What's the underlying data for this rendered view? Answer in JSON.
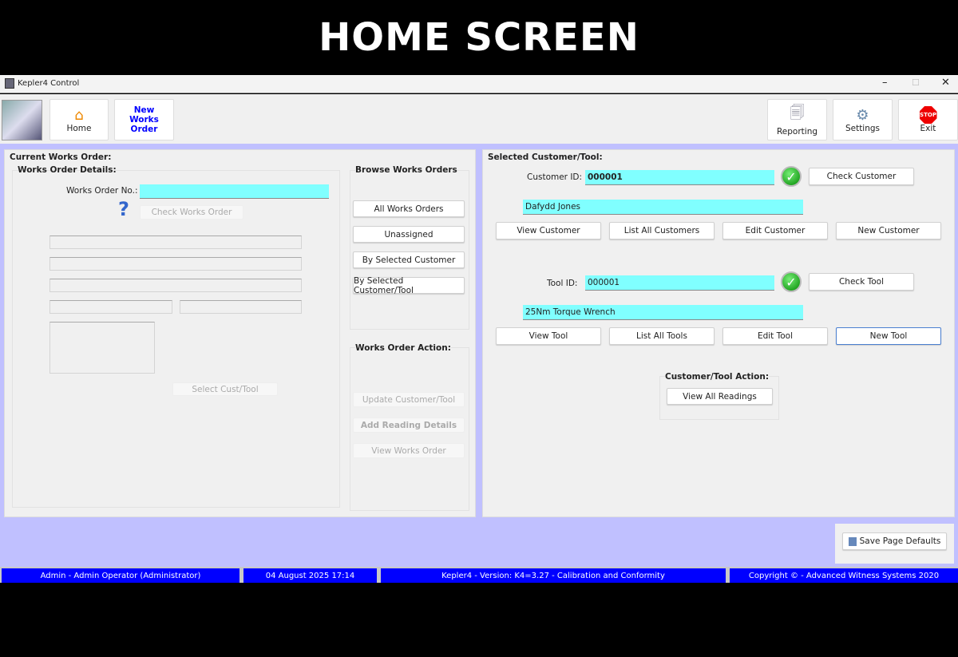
{
  "banner": "HOME SCREEN",
  "window": {
    "title": "Kepler4 Control"
  },
  "toolbar": {
    "home": "Home",
    "new_works_order": "New Works Order",
    "reporting": "Reporting",
    "settings": "Settings",
    "exit": "Exit",
    "stop": "STOP"
  },
  "left": {
    "title": "Current Works Order:",
    "details_title": "Works Order Details:",
    "wo_label": "Works Order No.:",
    "wo_value": "",
    "check_wo": "Check Works Order",
    "select_cust_tool": "Select Cust/Tool",
    "browse_title": "Browse Works Orders",
    "browse": [
      "All Works Orders",
      "Unassigned",
      "By Selected Customer",
      "By Selected Customer/Tool"
    ],
    "action_title": "Works Order Action:",
    "actions": [
      "Update Customer/Tool",
      "Add Reading Details",
      "View Works Order"
    ]
  },
  "right": {
    "title": "Selected Customer/Tool:",
    "customer_label": "Customer ID:",
    "customer_id": "000001",
    "check_customer": "Check Customer",
    "customer_name": "Dafydd Jones",
    "customer_buttons": [
      "View Customer",
      "List All Customers",
      "Edit Customer",
      "New Customer"
    ],
    "tool_label": "Tool ID:",
    "tool_id": "000001",
    "check_tool": "Check Tool",
    "tool_name": "25Nm Torque Wrench",
    "tool_buttons": [
      "View Tool",
      "List All Tools",
      "Edit Tool",
      "New Tool"
    ],
    "action_title": "Customer/Tool Action:",
    "view_readings": "View All Readings"
  },
  "save_defaults": "Save Page Defaults",
  "status": {
    "user": "Admin - Admin Operator (Administrator)",
    "datetime": "04 August 2025 17:14",
    "version": "Kepler4 - Version: K4=3.27 - Calibration and Conformity",
    "copyright": "Copyright © - Advanced Witness Systems 2020"
  },
  "colors": {
    "accent_input": "#80ffff",
    "background": "#c0c0ff",
    "status_bar": "#0000ff"
  }
}
